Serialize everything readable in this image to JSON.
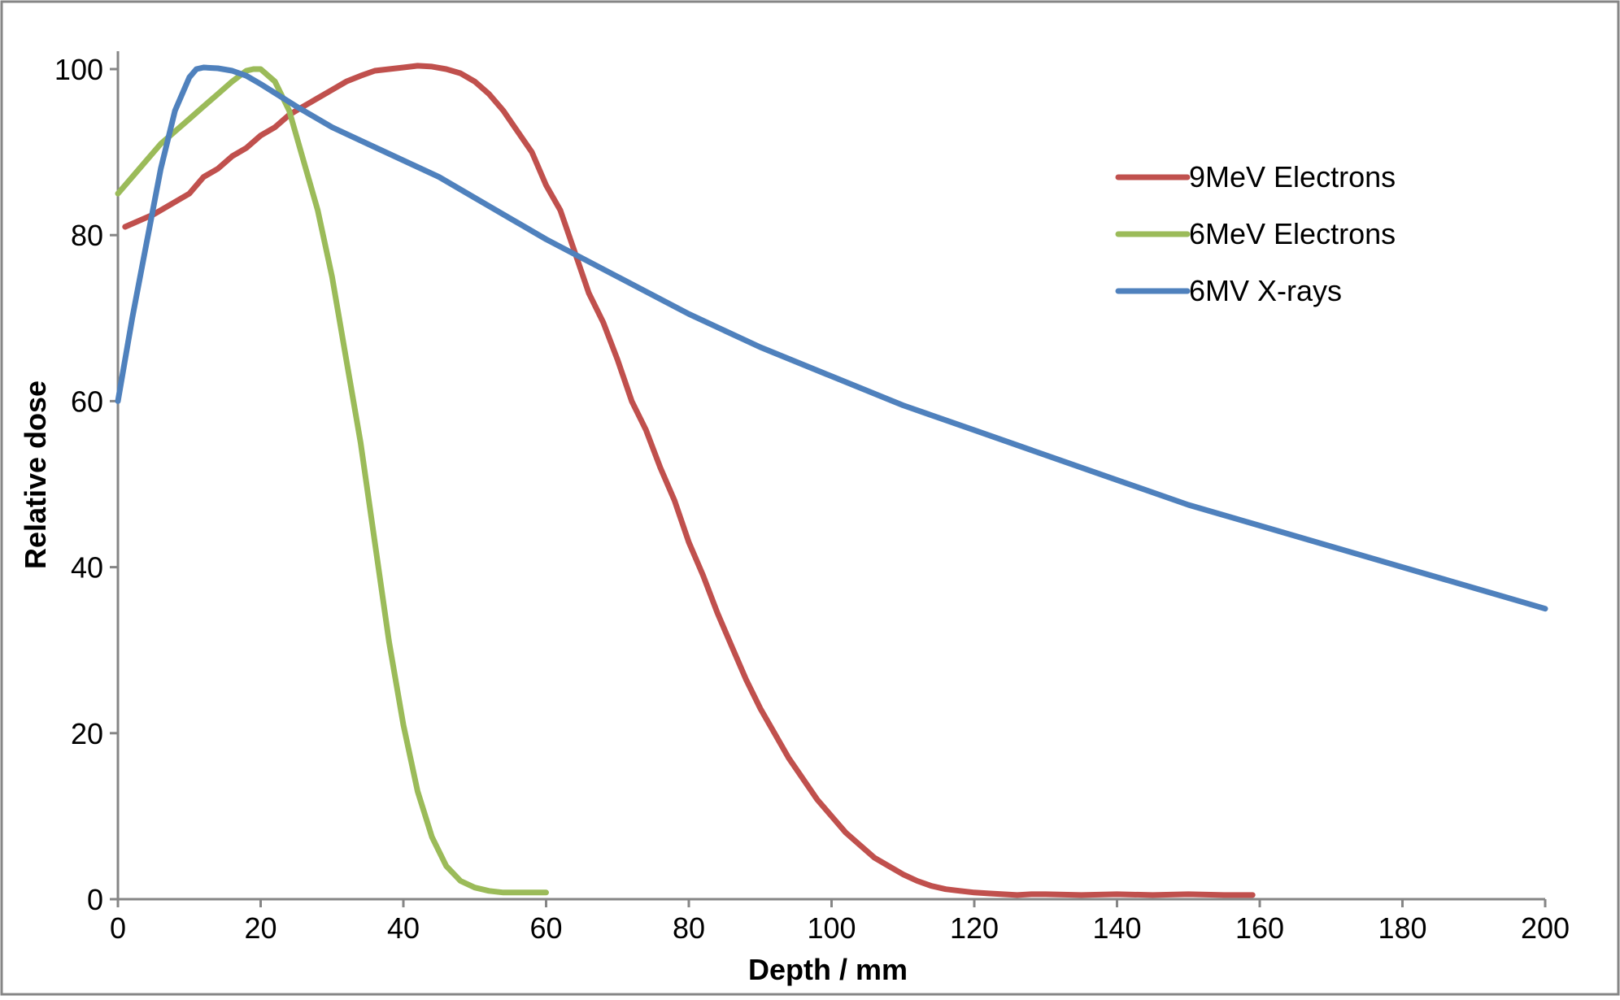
{
  "chart_data": {
    "type": "line",
    "title": "",
    "xlabel": "Depth / mm",
    "ylabel": "Relative dose",
    "xlim": [
      0,
      200
    ],
    "ylim": [
      0,
      100
    ],
    "x_ticks": [
      0,
      20,
      40,
      60,
      80,
      100,
      120,
      140,
      160,
      180,
      200
    ],
    "y_ticks": [
      0,
      20,
      40,
      60,
      80,
      100
    ],
    "grid": false,
    "legend_position": "right",
    "series": [
      {
        "name": "9MeV Electrons",
        "color": "#c0504d",
        "x": [
          1,
          5,
          8,
          10,
          12,
          14,
          16,
          18,
          20,
          22,
          24,
          26,
          28,
          30,
          32,
          34,
          36,
          38,
          40,
          42,
          44,
          46,
          48,
          50,
          52,
          54,
          56,
          58,
          60,
          62,
          64,
          66,
          68,
          70,
          72,
          74,
          76,
          78,
          80,
          82,
          84,
          86,
          88,
          90,
          92,
          94,
          96,
          98,
          100,
          102,
          104,
          106,
          108,
          110,
          112,
          114,
          116,
          118,
          120,
          122,
          124,
          126,
          128,
          130,
          135,
          140,
          145,
          150,
          155,
          159
        ],
        "y": [
          81,
          82.5,
          84,
          85,
          87,
          88,
          89.5,
          90.5,
          92,
          93,
          94.5,
          95.5,
          96.5,
          97.5,
          98.5,
          99.2,
          99.8,
          100,
          100.2,
          100.4,
          100.3,
          100,
          99.5,
          98.5,
          97,
          95,
          92.5,
          90,
          86,
          83,
          78,
          73,
          69.5,
          65,
          60,
          56.5,
          52,
          48,
          43,
          39,
          34.5,
          30.5,
          26.5,
          23,
          20,
          17,
          14.5,
          12,
          10,
          8,
          6.5,
          5,
          4,
          3,
          2.2,
          1.6,
          1.2,
          1,
          0.8,
          0.7,
          0.6,
          0.5,
          0.6,
          0.6,
          0.5,
          0.6,
          0.5,
          0.6,
          0.5,
          0.5
        ]
      },
      {
        "name": "6MeV Electrons",
        "color": "#9bbb59",
        "x": [
          0,
          2,
          4,
          6,
          8,
          10,
          12,
          14,
          16,
          18,
          19,
          20,
          22,
          24,
          26,
          28,
          30,
          32,
          34,
          36,
          38,
          40,
          42,
          44,
          46,
          48,
          50,
          52,
          54,
          56,
          58,
          60
        ],
        "y": [
          85,
          87,
          89,
          91,
          92.5,
          94,
          95.5,
          97,
          98.5,
          99.8,
          100,
          100,
          98.5,
          95,
          89,
          83,
          75,
          65,
          55,
          43,
          31,
          21,
          13,
          7.5,
          4,
          2.2,
          1.4,
          1,
          0.8,
          0.8,
          0.8,
          0.8
        ]
      },
      {
        "name": "6MV X-rays",
        "color": "#4f81bd",
        "x": [
          0,
          2,
          4,
          6,
          8,
          10,
          11,
          12,
          14,
          16,
          18,
          20,
          25,
          30,
          35,
          40,
          45,
          50,
          55,
          60,
          70,
          80,
          90,
          100,
          110,
          120,
          130,
          140,
          150,
          160,
          170,
          180,
          190,
          200
        ],
        "y": [
          60,
          70,
          79,
          88,
          95,
          99,
          100,
          100.2,
          100.1,
          99.8,
          99.2,
          98.2,
          95.5,
          93,
          91,
          89,
          87,
          84.5,
          82,
          79.5,
          75,
          70.5,
          66.5,
          63,
          59.5,
          56.5,
          53.5,
          50.5,
          47.5,
          45,
          42.5,
          40,
          37.5,
          35
        ]
      }
    ]
  }
}
